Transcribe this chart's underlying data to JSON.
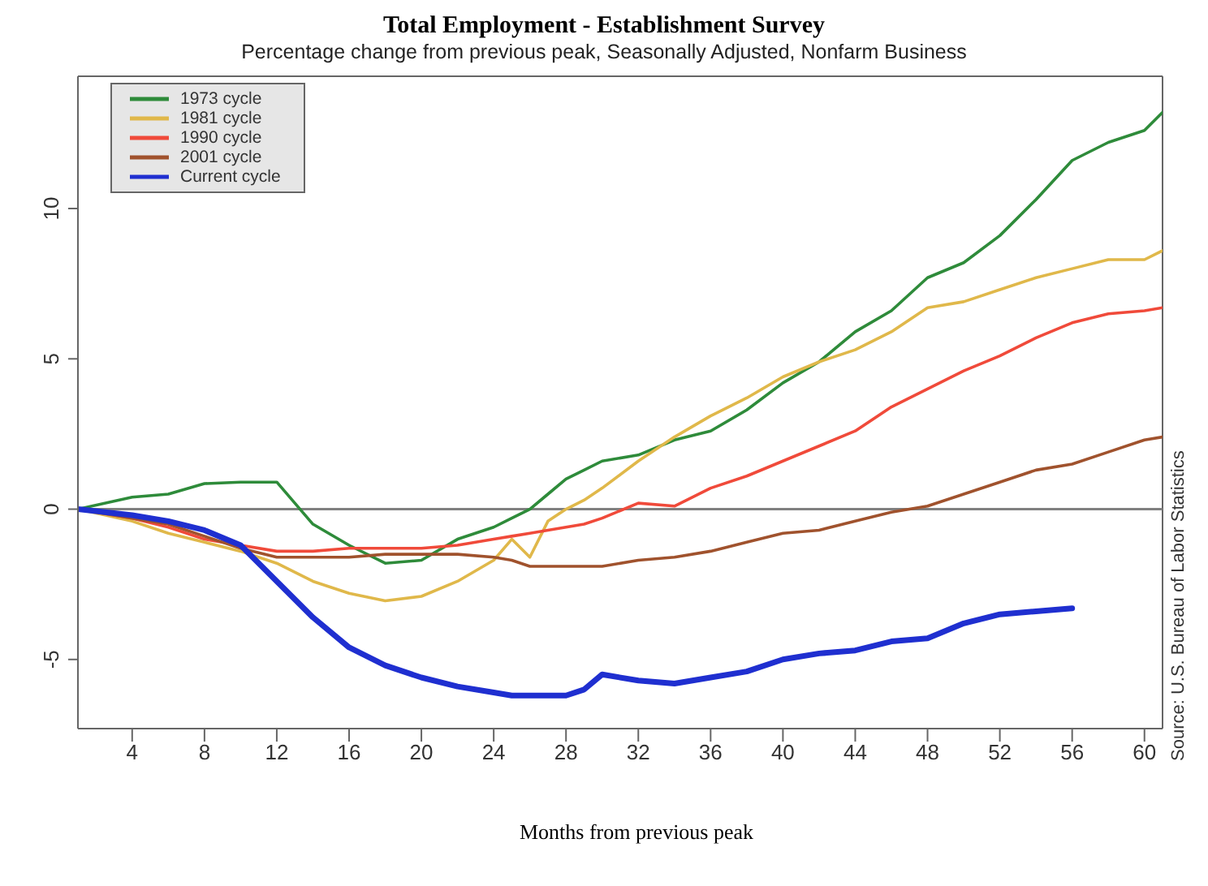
{
  "chart_data": {
    "type": "line",
    "title": "Total Employment - Establishment Survey",
    "subtitle": "Percentage change from previous peak, Seasonally Adjusted, Nonfarm Business",
    "xlabel": "Months from previous peak",
    "annotations": [
      "Source: U.S. Bureau of Labor Statistics"
    ],
    "x": [
      1,
      4,
      6,
      8,
      10,
      12,
      14,
      16,
      18,
      20,
      22,
      24,
      25,
      26,
      27,
      28,
      29,
      30,
      32,
      34,
      36,
      38,
      40,
      42,
      44,
      46,
      48,
      50,
      52,
      54,
      56,
      58,
      60,
      61
    ],
    "series": [
      {
        "name": "1973 cycle",
        "color": "#2e8b3a",
        "values": [
          0,
          0.4,
          0.5,
          0.85,
          0.9,
          0.9,
          -0.5,
          -1.2,
          -1.8,
          -1.7,
          -1.0,
          -0.6,
          -0.3,
          0,
          0.5,
          1.0,
          1.3,
          1.6,
          1.8,
          2.3,
          2.6,
          3.3,
          4.2,
          4.9,
          5.9,
          6.6,
          7.7,
          8.2,
          9.1,
          10.3,
          11.6,
          12.2,
          12.6,
          13.2
        ]
      },
      {
        "name": "1981 cycle",
        "color": "#e0b84a",
        "values": [
          0,
          -0.4,
          -0.8,
          -1.1,
          -1.4,
          -1.8,
          -2.4,
          -2.8,
          -3.05,
          -2.9,
          -2.4,
          -1.7,
          -1.0,
          -1.6,
          -0.4,
          0,
          0.3,
          0.7,
          1.6,
          2.4,
          3.1,
          3.7,
          4.4,
          4.9,
          5.3,
          5.9,
          6.7,
          6.9,
          7.3,
          7.7,
          8.0,
          8.3,
          8.3,
          8.6
        ]
      },
      {
        "name": "1990 cycle",
        "color": "#f04a3a",
        "values": [
          0,
          -0.3,
          -0.6,
          -1.0,
          -1.2,
          -1.4,
          -1.4,
          -1.3,
          -1.3,
          -1.3,
          -1.2,
          -1.0,
          -0.9,
          -0.8,
          -0.7,
          -0.6,
          -0.5,
          -0.3,
          0.2,
          0.1,
          0.7,
          1.1,
          1.6,
          2.1,
          2.6,
          3.4,
          4.0,
          4.6,
          5.1,
          5.7,
          6.2,
          6.5,
          6.6,
          6.7
        ]
      },
      {
        "name": "2001 cycle",
        "color": "#a0522d",
        "values": [
          0,
          -0.3,
          -0.5,
          -0.9,
          -1.3,
          -1.6,
          -1.6,
          -1.6,
          -1.5,
          -1.5,
          -1.5,
          -1.6,
          -1.7,
          -1.9,
          -1.9,
          -1.9,
          -1.9,
          -1.9,
          -1.7,
          -1.6,
          -1.4,
          -1.1,
          -0.8,
          -0.7,
          -0.4,
          -0.1,
          0.1,
          0.5,
          0.9,
          1.3,
          1.5,
          1.9,
          2.3,
          2.4
        ]
      },
      {
        "name": "Current cycle",
        "color": "#1f2fd0",
        "values": [
          0,
          -0.2,
          -0.4,
          -0.7,
          -1.2,
          -2.4,
          -3.6,
          -4.6,
          -5.2,
          -5.6,
          -5.9,
          -6.1,
          -6.2,
          -6.2,
          -6.2,
          -6.2,
          -6.0,
          -5.5,
          -5.7,
          -5.8,
          -5.6,
          -5.4,
          -5.0,
          -4.8,
          -4.7,
          -4.4,
          -4.3,
          -3.8,
          -3.5,
          -3.4,
          -3.3,
          null,
          null,
          null
        ]
      }
    ],
    "xlim": [
      1,
      61
    ],
    "xticks": [
      4,
      8,
      12,
      16,
      20,
      24,
      28,
      32,
      36,
      40,
      44,
      48,
      52,
      56,
      60
    ],
    "ylim": [
      -7.3,
      14.4
    ],
    "yticks": [
      -5,
      0,
      5,
      10
    ],
    "ref_lines": [
      {
        "axis": "y",
        "value": 0,
        "color": "#808080"
      }
    ],
    "grid": false,
    "legend": "top left",
    "line_style": "solid",
    "marker": "none"
  }
}
